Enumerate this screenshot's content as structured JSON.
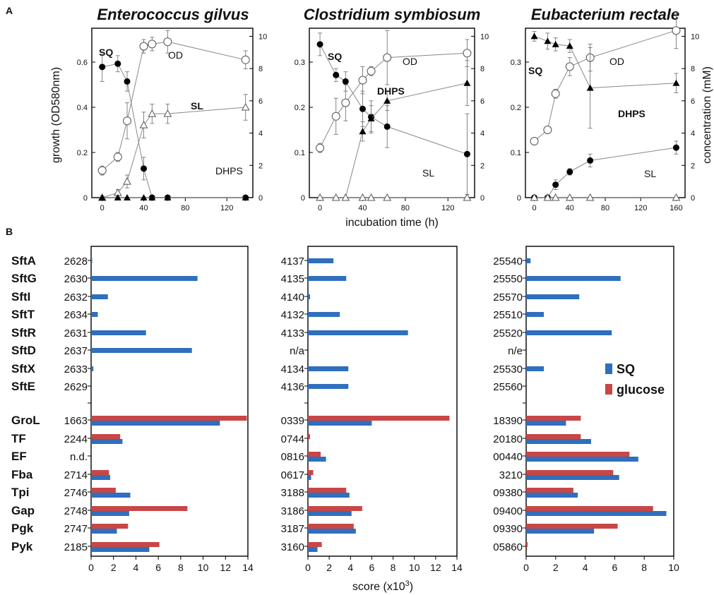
{
  "panel_a_letter": "A",
  "panel_b_letter": "B",
  "colors": {
    "sq": "#2f6fbd",
    "glucose": "#c94646"
  },
  "line_charts_common": {
    "ylabel_left": "growth (OD580nm)",
    "ylabel_right": "concentration (mM)",
    "xlabel": "incubation time (h)",
    "left_ticks": [
      "0",
      "0.2",
      "0.4",
      "0.6"
    ],
    "right_ticks": [
      "0",
      "2",
      "4",
      "6",
      "8",
      "10"
    ]
  },
  "bar_charts_common": {
    "xlabel": "score (x10",
    "xlabel_exp": "3",
    "xlabel_end": ")",
    "protein_labels": [
      "SftA",
      "SftG",
      "SftI",
      "SftT",
      "SftR",
      "SftD",
      "SftX",
      "SftE",
      "GroL",
      "TF",
      "EF",
      "Fba",
      "Tpi",
      "Gap",
      "Pgk",
      "Pyk"
    ]
  },
  "legend": {
    "sq": "SQ",
    "glucose": "glucose"
  },
  "chart_data": [
    {
      "type": "line",
      "title": "Enterococcus gilvus",
      "xlabel": "",
      "ylabel": "growth (OD580nm)",
      "y2label": "",
      "xlim": [
        -10,
        145
      ],
      "ylim": [
        0,
        0.75
      ],
      "y2lim": [
        0,
        10.5
      ],
      "xticks": [
        "0",
        "40",
        "80",
        "120"
      ],
      "xtick_values": [
        0,
        40,
        80,
        120
      ],
      "series": [
        {
          "name": "OD",
          "axis": "left",
          "marker": "open-circle",
          "x": [
            0,
            15,
            24,
            40,
            48,
            63,
            138
          ],
          "y": [
            0.12,
            0.18,
            0.34,
            0.67,
            0.68,
            0.69,
            0.61
          ],
          "err": [
            0.02,
            0.02,
            0.08,
            0.03,
            0.03,
            0.05,
            0.04
          ]
        },
        {
          "name": "SQ",
          "axis": "right",
          "marker": "filled-circle",
          "x": [
            0,
            15,
            24,
            40,
            48,
            63,
            138
          ],
          "y": [
            8.1,
            8.3,
            7.2,
            1.8,
            0,
            0,
            0
          ],
          "err": [
            0.9,
            0.5,
            0.6,
            0.7,
            0,
            0,
            0
          ]
        },
        {
          "name": "SL",
          "axis": "right",
          "marker": "open-triangle",
          "x": [
            0,
            15,
            24,
            40,
            48,
            63,
            138
          ],
          "y": [
            0,
            0.3,
            1.0,
            4.5,
            5.2,
            5.2,
            5.6
          ],
          "err": [
            0.1,
            0.2,
            0.4,
            0.8,
            0.6,
            0.6,
            0.8
          ]
        },
        {
          "name": "DHPS",
          "axis": "right",
          "marker": "filled-triangle",
          "x": [
            0,
            15,
            24,
            40,
            48,
            63,
            138
          ],
          "y": [
            0,
            0,
            0,
            0,
            0,
            0,
            0
          ],
          "err": [
            0,
            0,
            0,
            0,
            0,
            0,
            0
          ]
        }
      ]
    },
    {
      "type": "line",
      "title": "Clostridium symbiosum",
      "xlabel": "incubation time (h)",
      "ylabel": "",
      "y2label": "",
      "xlim": [
        -10,
        145
      ],
      "ylim": [
        0,
        0.375
      ],
      "y2lim": [
        0,
        10.5
      ],
      "xticks": [
        "0",
        "40",
        "80",
        "120"
      ],
      "xtick_values": [
        0,
        40,
        80,
        120
      ],
      "left_ticks": [
        "0",
        "0.1",
        "0.2",
        "0.3"
      ],
      "series": [
        {
          "name": "OD",
          "axis": "left",
          "marker": "open-circle",
          "x": [
            0,
            15,
            24,
            40,
            48,
            63,
            138
          ],
          "y": [
            0.11,
            0.18,
            0.21,
            0.26,
            0.28,
            0.31,
            0.32
          ],
          "err": [
            0.01,
            0.04,
            0.04,
            0.03,
            0.01,
            0.06,
            0.03
          ]
        },
        {
          "name": "SQ",
          "axis": "right",
          "marker": "filled-circle",
          "x": [
            0,
            15,
            24,
            40,
            48,
            63,
            138
          ],
          "y": [
            9.5,
            7.6,
            7.2,
            5.5,
            5.0,
            4.4,
            2.7
          ],
          "err": [
            0.7,
            0.4,
            0.6,
            1.1,
            1.0,
            1.3,
            2.5
          ]
        },
        {
          "name": "DHPS",
          "axis": "right",
          "marker": "filled-triangle",
          "x": [
            0,
            15,
            24,
            40,
            48,
            63,
            138
          ],
          "y": [
            0,
            0,
            0,
            4.1,
            4.9,
            6.0,
            7.1
          ],
          "err": [
            0,
            0,
            0,
            0.6,
            0.8,
            0.6,
            1.4
          ]
        },
        {
          "name": "SL",
          "axis": "right",
          "marker": "open-triangle",
          "x": [
            0,
            15,
            24,
            40,
            48,
            63,
            138
          ],
          "y": [
            0,
            0,
            0,
            0,
            0,
            0,
            0
          ],
          "err": [
            0,
            0,
            0,
            0,
            0,
            0,
            0
          ]
        }
      ]
    },
    {
      "type": "line",
      "title": "Eubacterium rectale",
      "xlabel": "",
      "ylabel": "",
      "y2label": "concentration (mM)",
      "xlim": [
        -10,
        170
      ],
      "ylim": [
        0,
        0.375
      ],
      "y2lim": [
        0,
        10.5
      ],
      "xticks": [
        "0",
        "40",
        "80",
        "120",
        "160"
      ],
      "xtick_values": [
        0,
        40,
        80,
        120,
        160
      ],
      "left_ticks": [
        "0",
        "0.1",
        "0.2",
        "0.3"
      ],
      "series": [
        {
          "name": "OD",
          "axis": "left",
          "marker": "open-circle",
          "x": [
            0,
            15,
            24,
            40,
            63,
            160
          ],
          "y": [
            0.125,
            0.15,
            0.23,
            0.29,
            0.31,
            0.37
          ],
          "err": [
            0.006,
            0.006,
            0.01,
            0.02,
            0.03,
            0.04
          ]
        },
        {
          "name": "SQ",
          "axis": "right",
          "marker": "filled-triangle",
          "x": [
            0,
            15,
            24,
            40,
            63,
            160
          ],
          "y": [
            10.0,
            9.7,
            9.5,
            9.4,
            6.8,
            7.1
          ],
          "err": [
            0.3,
            0.5,
            0.4,
            0.4,
            2.5,
            0.6
          ]
        },
        {
          "name": "DHPS",
          "axis": "right",
          "marker": "filled-circle",
          "x": [
            0,
            15,
            24,
            40,
            63,
            160
          ],
          "y": [
            0,
            0,
            0.8,
            1.6,
            2.3,
            3.1
          ],
          "err": [
            0,
            0,
            0.3,
            0.2,
            0.4,
            0.4
          ]
        },
        {
          "name": "SL",
          "axis": "right",
          "marker": "open-triangle",
          "x": [
            0,
            15,
            24,
            40,
            63,
            160
          ],
          "y": [
            0,
            0,
            0,
            0,
            0,
            0
          ],
          "err": [
            0,
            0,
            0,
            0,
            0,
            0
          ]
        }
      ]
    },
    {
      "type": "bar",
      "orientation": "horizontal",
      "title": "",
      "xlim": [
        0,
        14
      ],
      "xticks": [
        "0",
        "2",
        "4",
        "6",
        "8",
        "10",
        "12",
        "14"
      ],
      "categories": [
        "2628",
        "2630",
        "2632",
        "2634",
        "2631",
        "2637",
        "2633",
        "2629",
        "1663",
        "2244",
        "n.d.",
        "2714",
        "2746",
        "2748",
        "2747",
        "2185"
      ],
      "series": [
        {
          "name": "SQ",
          "values": [
            0.1,
            9.5,
            1.5,
            0.6,
            4.9,
            9.0,
            0.2,
            null,
            11.5,
            2.8,
            null,
            1.7,
            3.5,
            3.4,
            2.3,
            5.2
          ]
        },
        {
          "name": "glucose",
          "values": [
            null,
            null,
            null,
            null,
            null,
            null,
            null,
            null,
            13.9,
            2.6,
            null,
            1.6,
            2.2,
            8.6,
            3.3,
            6.1
          ]
        }
      ]
    },
    {
      "type": "bar",
      "orientation": "horizontal",
      "title": "",
      "xlim": [
        0,
        14
      ],
      "xticks": [
        "0",
        "2",
        "4",
        "6",
        "8",
        "10",
        "12",
        "14"
      ],
      "categories": [
        "4137",
        "4135",
        "4140",
        "4132",
        "4133",
        "n/a",
        "4134",
        "4136",
        "0339",
        "0744",
        "0816",
        "0617",
        "3188",
        "3186",
        "3187",
        "3160"
      ],
      "series": [
        {
          "name": "SQ",
          "values": [
            2.4,
            3.6,
            0.2,
            3.0,
            9.4,
            null,
            3.8,
            3.8,
            6.0,
            null,
            1.7,
            0.3,
            3.9,
            4.1,
            4.5,
            0.9
          ]
        },
        {
          "name": "glucose",
          "values": [
            null,
            null,
            null,
            null,
            null,
            null,
            null,
            null,
            13.3,
            0.2,
            1.2,
            0.5,
            3.6,
            5.1,
            4.3,
            1.3
          ]
        }
      ]
    },
    {
      "type": "bar",
      "orientation": "horizontal",
      "title": "",
      "xlim": [
        0,
        10
      ],
      "xticks": [
        "0",
        "2",
        "4",
        "6",
        "8",
        "10"
      ],
      "categories": [
        "25540",
        "25550",
        "25570",
        "25510",
        "25520",
        "n/e",
        "25530",
        "25560",
        "18390",
        "20180",
        "00440",
        "3210",
        "09380",
        "09400",
        "09390",
        "05860"
      ],
      "series": [
        {
          "name": "SQ",
          "values": [
            0.3,
            6.4,
            3.6,
            1.2,
            5.8,
            null,
            1.2,
            null,
            2.7,
            4.4,
            7.6,
            6.3,
            3.5,
            9.5,
            4.6,
            null
          ]
        },
        {
          "name": "glucose",
          "values": [
            null,
            null,
            null,
            null,
            null,
            null,
            null,
            null,
            3.7,
            3.7,
            7.0,
            5.9,
            3.2,
            8.6,
            6.2,
            0.1
          ]
        }
      ]
    }
  ]
}
